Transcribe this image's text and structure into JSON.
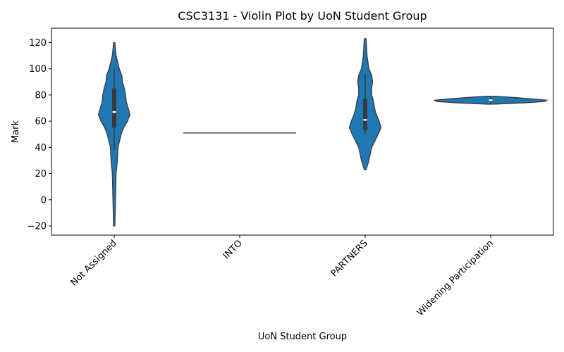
{
  "chart_data": {
    "type": "violin",
    "title": "CSC3131 - Violin Plot by UoN Student Group",
    "xlabel": "UoN Student Group",
    "ylabel": "Mark",
    "ylim": [
      -27,
      131
    ],
    "yticks": [
      -20,
      0,
      20,
      40,
      60,
      80,
      100,
      120
    ],
    "ytick_labels": [
      "−20",
      "0",
      "20",
      "40",
      "60",
      "80",
      "100",
      "120"
    ],
    "categories": [
      "Not Assigned",
      "INTO",
      "PARTNERS",
      "Widening Participation"
    ],
    "grid": false,
    "fill_color": "#1f77b4",
    "edge_color": "#3a3a3a",
    "violins": [
      {
        "category": "Not Assigned",
        "min": -20,
        "max": 120,
        "q1": 55,
        "median": 67,
        "q3": 85,
        "whisker_low": 38,
        "whisker_high": 100,
        "density": [
          [
            -20,
            0.02
          ],
          [
            0,
            0.04
          ],
          [
            20,
            0.06
          ],
          [
            30,
            0.1
          ],
          [
            40,
            0.12
          ],
          [
            50,
            0.22
          ],
          [
            55,
            0.3
          ],
          [
            60,
            0.42
          ],
          [
            65,
            0.5
          ],
          [
            70,
            0.44
          ],
          [
            75,
            0.38
          ],
          [
            80,
            0.36
          ],
          [
            85,
            0.32
          ],
          [
            90,
            0.26
          ],
          [
            95,
            0.24
          ],
          [
            100,
            0.16
          ],
          [
            110,
            0.06
          ],
          [
            120,
            0.02
          ]
        ]
      },
      {
        "category": "INTO",
        "min": 51,
        "max": 51,
        "q1": 51,
        "median": 51,
        "q3": 51,
        "whisker_low": 51,
        "whisker_high": 51,
        "flat_width": 1.0
      },
      {
        "category": "PARTNERS",
        "min": 23,
        "max": 123,
        "q1": 53,
        "median": 61,
        "q3": 77,
        "whisker_low": 50,
        "whisker_high": 96,
        "density": [
          [
            23,
            0.02
          ],
          [
            30,
            0.08
          ],
          [
            40,
            0.14
          ],
          [
            50,
            0.28
          ],
          [
            55,
            0.34
          ],
          [
            60,
            0.3
          ],
          [
            65,
            0.24
          ],
          [
            70,
            0.2
          ],
          [
            75,
            0.18
          ],
          [
            80,
            0.14
          ],
          [
            85,
            0.14
          ],
          [
            90,
            0.16
          ],
          [
            95,
            0.14
          ],
          [
            100,
            0.08
          ],
          [
            110,
            0.04
          ],
          [
            123,
            0.02
          ]
        ]
      },
      {
        "category": "Widening Participation",
        "min": 73,
        "max": 79,
        "q1": 75,
        "median": 76,
        "q3": 77,
        "whisker_low": 73,
        "whisker_high": 79,
        "density": [
          [
            73,
            0.05
          ],
          [
            74,
            0.6
          ],
          [
            75,
            0.95
          ],
          [
            76,
            1.0
          ],
          [
            77,
            0.75
          ],
          [
            78,
            0.45
          ],
          [
            79,
            0.1
          ]
        ]
      }
    ]
  }
}
